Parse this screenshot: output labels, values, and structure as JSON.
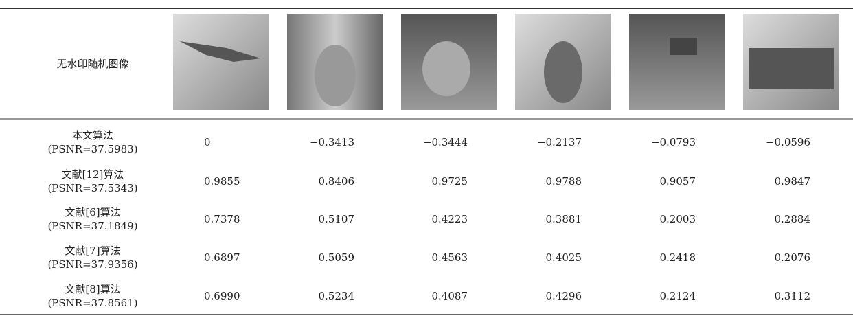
{
  "table": {
    "header": {
      "label": "无水印随机图像"
    },
    "rows": [
      {
        "method": "本文算法",
        "psnr": "(PSNR=37.5983)",
        "values": [
          "0",
          "−0.3413",
          "−0.3444",
          "−0.2137",
          "−0.0793",
          "−0.0596"
        ]
      },
      {
        "method": "文献[12]算法",
        "psnr": "(PSNR=37.5343)",
        "values": [
          "0.9855",
          "0.8406",
          "0.9725",
          "0.9788",
          "0.9057",
          "0.9847"
        ]
      },
      {
        "method": "文献[6]算法",
        "psnr": "(PSNR=37.1849)",
        "values": [
          "0.7378",
          "0.5107",
          "0.4223",
          "0.3881",
          "0.2003",
          "0.2884"
        ]
      },
      {
        "method": "文献[7]算法",
        "psnr": "(PSNR=37.9356)",
        "values": [
          "0.6897",
          "0.5059",
          "0.4563",
          "0.4025",
          "0.2418",
          "0.2076"
        ]
      },
      {
        "method": "文献[8]算法",
        "psnr": "(PSNR=37.8561)",
        "values": [
          "0.6990",
          "0.5234",
          "0.4087",
          "0.4296",
          "0.2124",
          "0.3112"
        ]
      }
    ]
  }
}
